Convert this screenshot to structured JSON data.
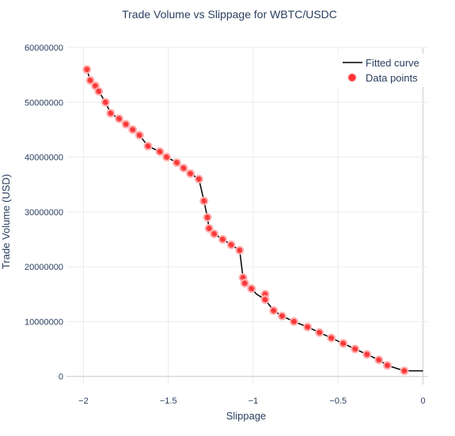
{
  "chart_data": {
    "type": "scatter",
    "title": "Trade Volume vs Slippage for WBTC/USDC",
    "xlabel": "Slippage",
    "ylabel": "Trade Volume (USD)",
    "xlim": [
      -2.1,
      0.03
    ],
    "ylim": [
      -1500000,
      60000000
    ],
    "grid": true,
    "legend_position": "top-right",
    "xticks": [
      {
        "value": -2,
        "label": "−2"
      },
      {
        "value": -1.5,
        "label": "−1.5"
      },
      {
        "value": -1,
        "label": "−1"
      },
      {
        "value": -0.5,
        "label": "−0.5"
      },
      {
        "value": 0,
        "label": "0"
      }
    ],
    "yticks": [
      {
        "value": 0,
        "label": "0"
      },
      {
        "value": 10000000,
        "label": "10000000"
      },
      {
        "value": 20000000,
        "label": "20000000"
      },
      {
        "value": 30000000,
        "label": "30000000"
      },
      {
        "value": 40000000,
        "label": "40000000"
      },
      {
        "value": 50000000,
        "label": "50000000"
      },
      {
        "value": 60000000,
        "label": "60000000"
      }
    ],
    "colors": {
      "points": "#ff3333",
      "points_outline": "#ffb3b3",
      "curve": "#000000",
      "text": "#2a3f5f",
      "grid": "#ebebeb",
      "zeroline": "#cccccc"
    },
    "series": [
      {
        "name": "Fitted curve",
        "mode": "lines",
        "x": [
          -1.98,
          -1.96,
          -1.93,
          -1.91,
          -1.87,
          -1.84,
          -1.79,
          -1.75,
          -1.71,
          -1.67,
          -1.62,
          -1.55,
          -1.51,
          -1.45,
          -1.41,
          -1.37,
          -1.32,
          -1.29,
          -1.27,
          -1.26,
          -1.23,
          -1.18,
          -1.13,
          -1.08,
          -1.06,
          -1.05,
          -1.01,
          -0.98,
          -0.93,
          -0.88,
          -0.83,
          -0.76,
          -0.68,
          -0.61,
          -0.54,
          -0.47,
          -0.4,
          -0.33,
          -0.26,
          -0.21,
          -0.11,
          0.0
        ],
        "y": [
          56000000,
          54000000,
          53000000,
          52000000,
          50000000,
          48000000,
          47000000,
          46000000,
          45000000,
          44000000,
          42000000,
          41000000,
          40000000,
          39000000,
          38000000,
          37000000,
          36000000,
          32000000,
          29000000,
          27000000,
          26000000,
          25000000,
          24000000,
          23000000,
          18000000,
          17000000,
          16000000,
          15000000,
          14000000,
          12000000,
          11000000,
          10000000,
          9000000,
          8000000,
          7000000,
          6000000,
          5000000,
          4000000,
          3000000,
          2000000,
          1000000,
          1000000
        ]
      },
      {
        "name": "Data points",
        "mode": "markers",
        "x": [
          -1.98,
          -1.96,
          -1.93,
          -1.91,
          -1.87,
          -1.84,
          -1.79,
          -1.75,
          -1.71,
          -1.67,
          -1.62,
          -1.55,
          -1.51,
          -1.45,
          -1.41,
          -1.37,
          -1.32,
          -1.29,
          -1.27,
          -1.26,
          -1.23,
          -1.18,
          -1.13,
          -1.08,
          -1.06,
          -1.05,
          -1.01,
          -0.93,
          -0.93,
          -0.88,
          -0.83,
          -0.76,
          -0.68,
          -0.61,
          -0.54,
          -0.47,
          -0.4,
          -0.33,
          -0.26,
          -0.21,
          -0.11
        ],
        "y": [
          56000000,
          54000000,
          53000000,
          52000000,
          50000000,
          48000000,
          47000000,
          46000000,
          45000000,
          44000000,
          42000000,
          41000000,
          40000000,
          39000000,
          38000000,
          37000000,
          36000000,
          32000000,
          29000000,
          27000000,
          26000000,
          25000000,
          24000000,
          23000000,
          18000000,
          17000000,
          16000000,
          15000000,
          14000000,
          12000000,
          11000000,
          10000000,
          9000000,
          8000000,
          7000000,
          6000000,
          5000000,
          4000000,
          3000000,
          2000000,
          1000000
        ]
      }
    ]
  }
}
